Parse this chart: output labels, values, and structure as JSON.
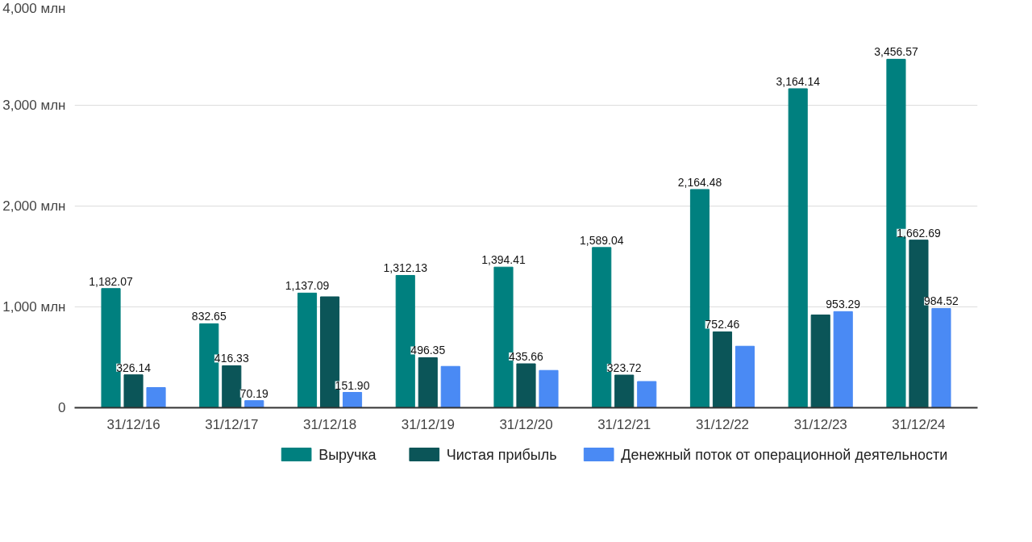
{
  "chart_data": {
    "type": "bar",
    "categories": [
      "31/12/16",
      "31/12/17",
      "31/12/18",
      "31/12/19",
      "31/12/20",
      "31/12/21",
      "31/12/22",
      "31/12/23",
      "31/12/24"
    ],
    "series": [
      {
        "name": "Выручка",
        "color": "#00807f",
        "values": [
          1182.07,
          832.65,
          1137.09,
          1312.13,
          1394.41,
          1589.04,
          2164.48,
          3164.14,
          3456.57
        ],
        "value_labels": [
          "1,182.07",
          "832.65",
          "1,137.09",
          "1,312.13",
          "1,394.41",
          "1,589.04",
          "2,164.48",
          "3,164.14",
          "3,456.57"
        ]
      },
      {
        "name": "Чистая прибыль",
        "color": "#0b5558",
        "values": [
          326.14,
          416.33,
          1100,
          496.35,
          435.66,
          323.72,
          752.46,
          920,
          1662.69
        ],
        "value_labels": [
          "326.14",
          "416.33",
          null,
          "496.35",
          "435.66",
          "323.72",
          "752.46",
          null,
          "1,662.69"
        ]
      },
      {
        "name": "Денежный поток от операционной деятельности",
        "color": "#4a8af4",
        "values": [
          200,
          70.19,
          151.9,
          410,
          370,
          260,
          610,
          953.29,
          984.52
        ],
        "value_labels": [
          null,
          "70.19",
          "151.90",
          null,
          null,
          null,
          null,
          "953.29",
          "984.52"
        ]
      }
    ],
    "ylim": [
      0,
      4000
    ],
    "yticks": [
      0,
      {
        "value": 1000,
        "label": "1,000 млн"
      },
      {
        "value": 2000,
        "label": "2,000 млн"
      },
      {
        "value": 3000,
        "label": "3,000 млн"
      },
      {
        "value": 4000,
        "label": "4,000 млн"
      }
    ],
    "grid": "y",
    "legend": "bottom"
  }
}
